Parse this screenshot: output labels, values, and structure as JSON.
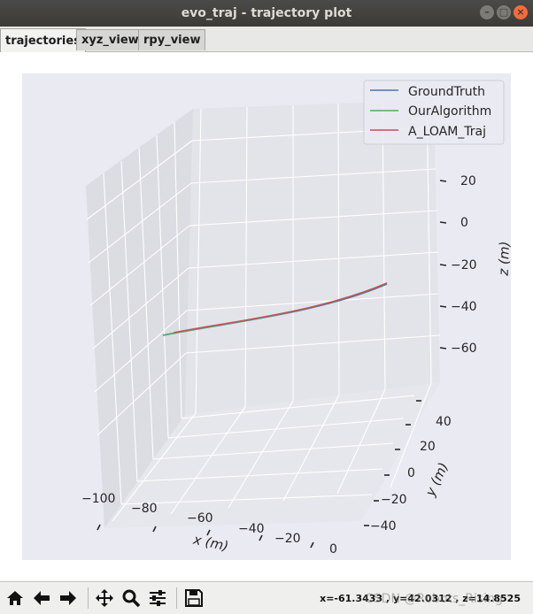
{
  "window": {
    "title": "evo_traj - trajectory plot"
  },
  "tabs": [
    {
      "label": "trajectories",
      "active": true
    },
    {
      "label": "xyz_view",
      "active": false
    },
    {
      "label": "rpy_view",
      "active": false
    }
  ],
  "toolbar": {
    "coords": "x=-61.3433 , y=42.0312 , z=14.8525",
    "icons": [
      "home-icon",
      "back-arrow-icon",
      "forward-arrow-icon",
      "pan-icon",
      "zoom-icon",
      "configure-subplots-icon",
      "save-icon"
    ]
  },
  "watermark": "CSDN @Robots_Rising",
  "colors": {
    "pane_bg": "#eaeaf2",
    "groundtruth": "#4c72b0",
    "ouralgorithm": "#55a868",
    "aloam": "#c44e52"
  },
  "chart_data": {
    "type": "line",
    "projection": "3d",
    "xlabel": "x (m)",
    "ylabel": "y (m)",
    "zlabel": "z (m)",
    "x_ticks": [
      "−100",
      "−80",
      "−60",
      "−40",
      "−20",
      "0"
    ],
    "y_ticks": [
      "−40",
      "−20",
      "0",
      "20",
      "40"
    ],
    "z_ticks": [
      "20",
      "0",
      "−20",
      "−40",
      "−60"
    ],
    "legend_position": "top-right",
    "grid": true,
    "series": [
      {
        "name": "GroundTruth",
        "color": "#4c72b0"
      },
      {
        "name": "OurAlgorithm",
        "color": "#55a868"
      },
      {
        "name": "A_LOAM_Traj",
        "color": "#c44e52"
      }
    ]
  }
}
